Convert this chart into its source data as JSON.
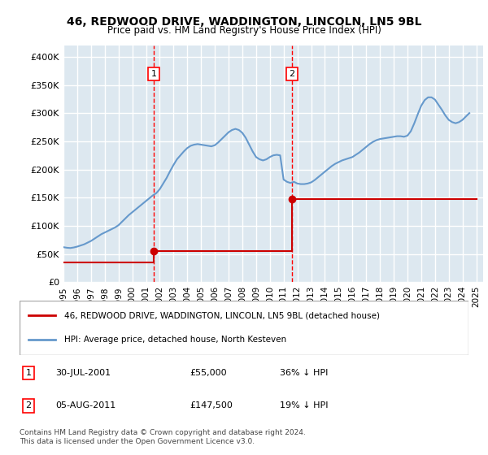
{
  "title": "46, REDWOOD DRIVE, WADDINGTON, LINCOLN, LN5 9BL",
  "subtitle": "Price paid vs. HM Land Registry's House Price Index (HPI)",
  "ylabel": "",
  "xlabel": "",
  "ylim": [
    0,
    420000
  ],
  "xlim_start": 1995.0,
  "xlim_end": 2025.5,
  "yticks": [
    0,
    50000,
    100000,
    150000,
    200000,
    250000,
    300000,
    350000,
    400000
  ],
  "ytick_labels": [
    "£0",
    "£50K",
    "£100K",
    "£150K",
    "£200K",
    "£250K",
    "£300K",
    "£350K",
    "£400K"
  ],
  "xtick_years": [
    1995,
    1996,
    1997,
    1998,
    1999,
    2000,
    2001,
    2002,
    2003,
    2004,
    2005,
    2006,
    2007,
    2008,
    2009,
    2010,
    2011,
    2012,
    2013,
    2014,
    2015,
    2016,
    2017,
    2018,
    2019,
    2020,
    2021,
    2022,
    2023,
    2024,
    2025
  ],
  "background_color": "#dde8f0",
  "plot_bg": "#dde8f0",
  "grid_color": "#ffffff",
  "red_line_color": "#cc0000",
  "blue_line_color": "#6699cc",
  "marker1_x": 2001.58,
  "marker1_y": 55000,
  "marker2_x": 2011.59,
  "marker2_y": 147500,
  "marker1_date": "30-JUL-2001",
  "marker1_price": "£55,000",
  "marker1_hpi": "36% ↓ HPI",
  "marker2_date": "05-AUG-2011",
  "marker2_price": "£147,500",
  "marker2_hpi": "19% ↓ HPI",
  "legend_line1": "46, REDWOOD DRIVE, WADDINGTON, LINCOLN, LN5 9BL (detached house)",
  "legend_line2": "HPI: Average price, detached house, North Kesteven",
  "footnote": "Contains HM Land Registry data © Crown copyright and database right 2024.\nThis data is licensed under the Open Government Licence v3.0.",
  "hpi_x": [
    1995.0,
    1995.25,
    1995.5,
    1995.75,
    1996.0,
    1996.25,
    1996.5,
    1996.75,
    1997.0,
    1997.25,
    1997.5,
    1997.75,
    1998.0,
    1998.25,
    1998.5,
    1998.75,
    1999.0,
    1999.25,
    1999.5,
    1999.75,
    2000.0,
    2000.25,
    2000.5,
    2000.75,
    2001.0,
    2001.25,
    2001.5,
    2001.75,
    2002.0,
    2002.25,
    2002.5,
    2002.75,
    2003.0,
    2003.25,
    2003.5,
    2003.75,
    2004.0,
    2004.25,
    2004.5,
    2004.75,
    2005.0,
    2005.25,
    2005.5,
    2005.75,
    2006.0,
    2006.25,
    2006.5,
    2006.75,
    2007.0,
    2007.25,
    2007.5,
    2007.75,
    2008.0,
    2008.25,
    2008.5,
    2008.75,
    2009.0,
    2009.25,
    2009.5,
    2009.75,
    2010.0,
    2010.25,
    2010.5,
    2010.75,
    2011.0,
    2011.25,
    2011.5,
    2011.75,
    2012.0,
    2012.25,
    2012.5,
    2012.75,
    2013.0,
    2013.25,
    2013.5,
    2013.75,
    2014.0,
    2014.25,
    2014.5,
    2014.75,
    2015.0,
    2015.25,
    2015.5,
    2015.75,
    2016.0,
    2016.25,
    2016.5,
    2016.75,
    2017.0,
    2017.25,
    2017.5,
    2017.75,
    2018.0,
    2018.25,
    2018.5,
    2018.75,
    2019.0,
    2019.25,
    2019.5,
    2019.75,
    2020.0,
    2020.25,
    2020.5,
    2020.75,
    2021.0,
    2021.25,
    2021.5,
    2021.75,
    2022.0,
    2022.25,
    2022.5,
    2022.75,
    2023.0,
    2023.25,
    2023.5,
    2023.75,
    2024.0,
    2024.25,
    2024.5
  ],
  "hpi_y": [
    62000,
    61000,
    60500,
    61500,
    63000,
    65000,
    67000,
    70000,
    73000,
    77000,
    81000,
    85000,
    88000,
    91000,
    94000,
    97000,
    101000,
    107000,
    113000,
    119000,
    124000,
    129000,
    134000,
    139000,
    144000,
    149000,
    154000,
    158000,
    165000,
    175000,
    185000,
    197000,
    208000,
    218000,
    225000,
    232000,
    238000,
    242000,
    244000,
    245000,
    244000,
    243000,
    242000,
    241000,
    243000,
    248000,
    254000,
    260000,
    266000,
    270000,
    272000,
    270000,
    265000,
    256000,
    244000,
    232000,
    222000,
    218000,
    216000,
    218000,
    222000,
    225000,
    226000,
    225000,
    182000,
    178000,
    176000,
    178000,
    175000,
    174000,
    174000,
    175000,
    177000,
    181000,
    186000,
    191000,
    196000,
    201000,
    206000,
    210000,
    213000,
    216000,
    218000,
    220000,
    222000,
    226000,
    230000,
    235000,
    240000,
    245000,
    249000,
    252000,
    254000,
    255000,
    256000,
    257000,
    258000,
    259000,
    259000,
    258000,
    260000,
    268000,
    282000,
    298000,
    313000,
    323000,
    328000,
    328000,
    324000,
    315000,
    306000,
    296000,
    288000,
    284000,
    282000,
    284000,
    288000,
    294000,
    300000
  ],
  "price_paid_x": [
    1995.0,
    2001.58,
    2001.58,
    2011.59,
    2011.59,
    2025.0
  ],
  "price_paid_y": [
    35000,
    35000,
    55000,
    55000,
    147500,
    147500
  ]
}
